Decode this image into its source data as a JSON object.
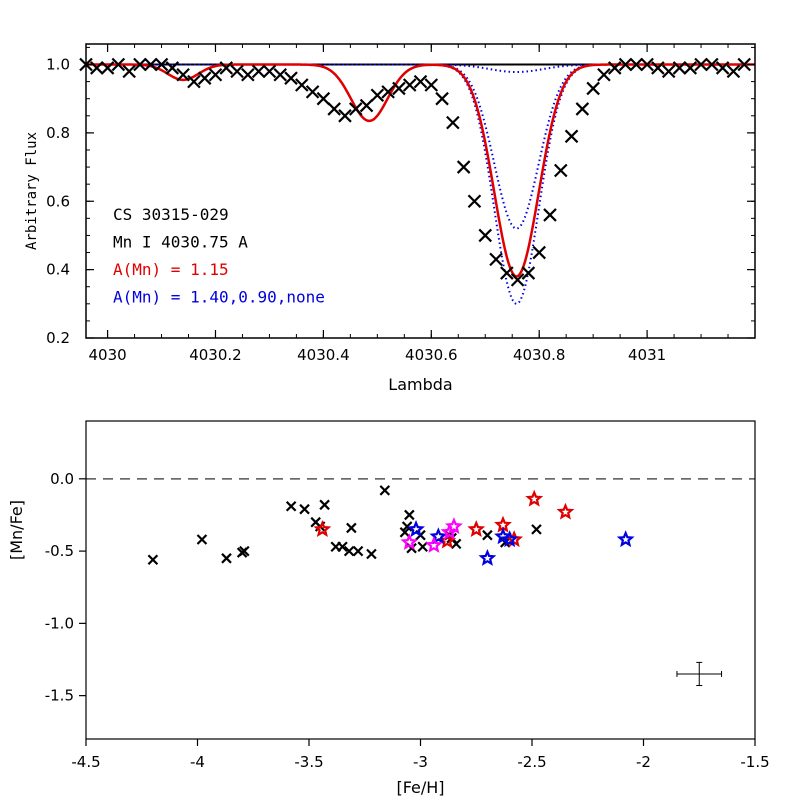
{
  "colors": {
    "observed": "#000000",
    "fit": "#e00000",
    "alt": "#0000e0",
    "magenta": "#ff00ff",
    "reference": "#555555"
  },
  "chart_data": [
    {
      "type": "line",
      "xlabel": "Lambda",
      "ylabel": "Arbitrary Flux",
      "xlim": [
        4029.96,
        4031.2
      ],
      "ylim": [
        0.2,
        1.06
      ],
      "xticks": [
        4030,
        4030.2,
        4030.4,
        4030.6,
        4030.8,
        4031
      ],
      "xtick_labels": [
        "4030",
        "4030.2",
        "4030.4",
        "4030.6",
        "4030.8",
        "4031"
      ],
      "yticks": [
        0.2,
        0.4,
        0.6,
        0.8,
        1.0
      ],
      "ytick_labels": [
        "0.2",
        "0.4",
        "0.6",
        "0.8",
        "1.0"
      ],
      "continuum": 1.0,
      "annotations": [
        {
          "text": "CS 30315-029",
          "color": "#000000"
        },
        {
          "text": "Mn I 4030.75 A",
          "color": "#000000"
        },
        {
          "text": "A(Mn) = 1.15",
          "color": "#e00000"
        },
        {
          "text": "A(Mn) = 1.40,0.90,none",
          "color": "#0000e0"
        }
      ],
      "observed": {
        "marker": "x",
        "x": [
          3.96,
          3.98,
          4.0,
          4.02,
          4.04,
          4.06,
          4.08,
          4.1,
          4.12,
          4.14,
          4.16,
          4.18,
          4.2,
          4.22,
          4.24,
          4.26,
          4.28,
          4.3,
          4.32,
          4.34,
          4.36,
          4.38,
          4.4,
          4.42,
          4.44,
          4.46,
          4.48,
          4.5,
          4.52,
          4.54,
          4.56,
          4.58,
          4.6,
          4.62,
          4.64,
          4.66,
          4.68,
          4.7,
          4.72,
          4.74,
          4.76,
          4.78,
          4.8,
          4.82,
          4.84,
          4.86,
          4.88,
          4.9,
          4.92,
          4.94,
          4.96,
          4.98,
          5.0,
          5.02,
          5.04,
          5.06,
          5.08,
          5.1,
          5.12,
          5.14,
          5.16,
          5.18
        ],
        "y": [
          1.0,
          0.99,
          0.99,
          1.0,
          0.98,
          1.0,
          1.0,
          1.0,
          0.99,
          0.97,
          0.95,
          0.96,
          0.97,
          0.99,
          0.98,
          0.97,
          0.98,
          0.98,
          0.97,
          0.96,
          0.94,
          0.92,
          0.9,
          0.87,
          0.85,
          0.87,
          0.88,
          0.91,
          0.92,
          0.93,
          0.94,
          0.95,
          0.94,
          0.9,
          0.83,
          0.7,
          0.6,
          0.5,
          0.43,
          0.39,
          0.37,
          0.39,
          0.45,
          0.56,
          0.69,
          0.79,
          0.87,
          0.93,
          0.97,
          0.99,
          1.0,
          1.0,
          1.0,
          0.99,
          0.98,
          0.99,
          0.99,
          1.0,
          1.0,
          0.99,
          0.98,
          1.0
        ],
        "x_offset": 4026
      },
      "fit_line": {
        "name": "",
        "color": "#e00000",
        "abundance_label": "A(Mn) = 1.15"
      },
      "alt_lines": {
        "color": "#0000e0",
        "abundance_label": "A(Mn) = 1.40,0.90,none"
      }
    },
    {
      "type": "scatter",
      "xlabel": "[Fe/H]",
      "ylabel": "[Mn/Fe]",
      "xlim": [
        -4.5,
        -1.5
      ],
      "ylim": [
        -1.8,
        0.4
      ],
      "xticks": [
        -4.5,
        -4,
        -3.5,
        -3,
        -2.5,
        -2,
        -1.5
      ],
      "xtick_labels": [
        "-4.5",
        "-4",
        "-3.5",
        "-3",
        "-2.5",
        "-2",
        "-1.5"
      ],
      "yticks": [
        0.0,
        -0.5,
        -1.0,
        -1.5
      ],
      "ytick_labels": [
        "0.0",
        "-0.5",
        "-1.0",
        "-1.5"
      ],
      "reference_line": 0.0,
      "error_bar": {
        "x": -1.75,
        "y": -1.35,
        "xerr": 0.1,
        "yerr": 0.08
      },
      "series": [
        {
          "marker": "x",
          "color": "#000000",
          "x": [
            -4.2,
            -3.98,
            -3.87,
            -3.8,
            -3.79,
            -3.58,
            -3.52,
            -3.47,
            -3.45,
            -3.43,
            -3.38,
            -3.35,
            -3.32,
            -3.31,
            -3.28,
            -3.22,
            -3.16,
            -3.07,
            -3.06,
            -3.05,
            -3.04,
            -3.0,
            -2.99,
            -2.87,
            -2.86,
            -2.84,
            -2.7,
            -2.62,
            -2.48
          ],
          "y": [
            -0.56,
            -0.42,
            -0.55,
            -0.51,
            -0.5,
            -0.19,
            -0.21,
            -0.3,
            -0.33,
            -0.18,
            -0.47,
            -0.47,
            -0.5,
            -0.34,
            -0.5,
            -0.52,
            -0.08,
            -0.37,
            -0.33,
            -0.25,
            -0.48,
            -0.39,
            -0.47,
            -0.39,
            -0.41,
            -0.45,
            -0.39,
            -0.44,
            -0.35
          ]
        },
        {
          "marker": "star",
          "color": "#e00000",
          "x": [
            -3.44,
            -2.88,
            -2.75,
            -2.63,
            -2.58,
            -2.49,
            -2.35
          ],
          "y": [
            -0.35,
            -0.43,
            -0.35,
            -0.32,
            -0.42,
            -0.14,
            -0.23
          ]
        },
        {
          "marker": "star",
          "color": "#0000e0",
          "x": [
            -3.02,
            -2.92,
            -2.7,
            -2.63,
            -2.6,
            -2.08
          ],
          "y": [
            -0.35,
            -0.4,
            -0.55,
            -0.4,
            -0.42,
            -0.42
          ]
        },
        {
          "marker": "star",
          "color": "#ff00ff",
          "x": [
            -3.05,
            -2.94,
            -2.87,
            -2.85
          ],
          "y": [
            -0.44,
            -0.46,
            -0.37,
            -0.33
          ]
        }
      ]
    }
  ]
}
